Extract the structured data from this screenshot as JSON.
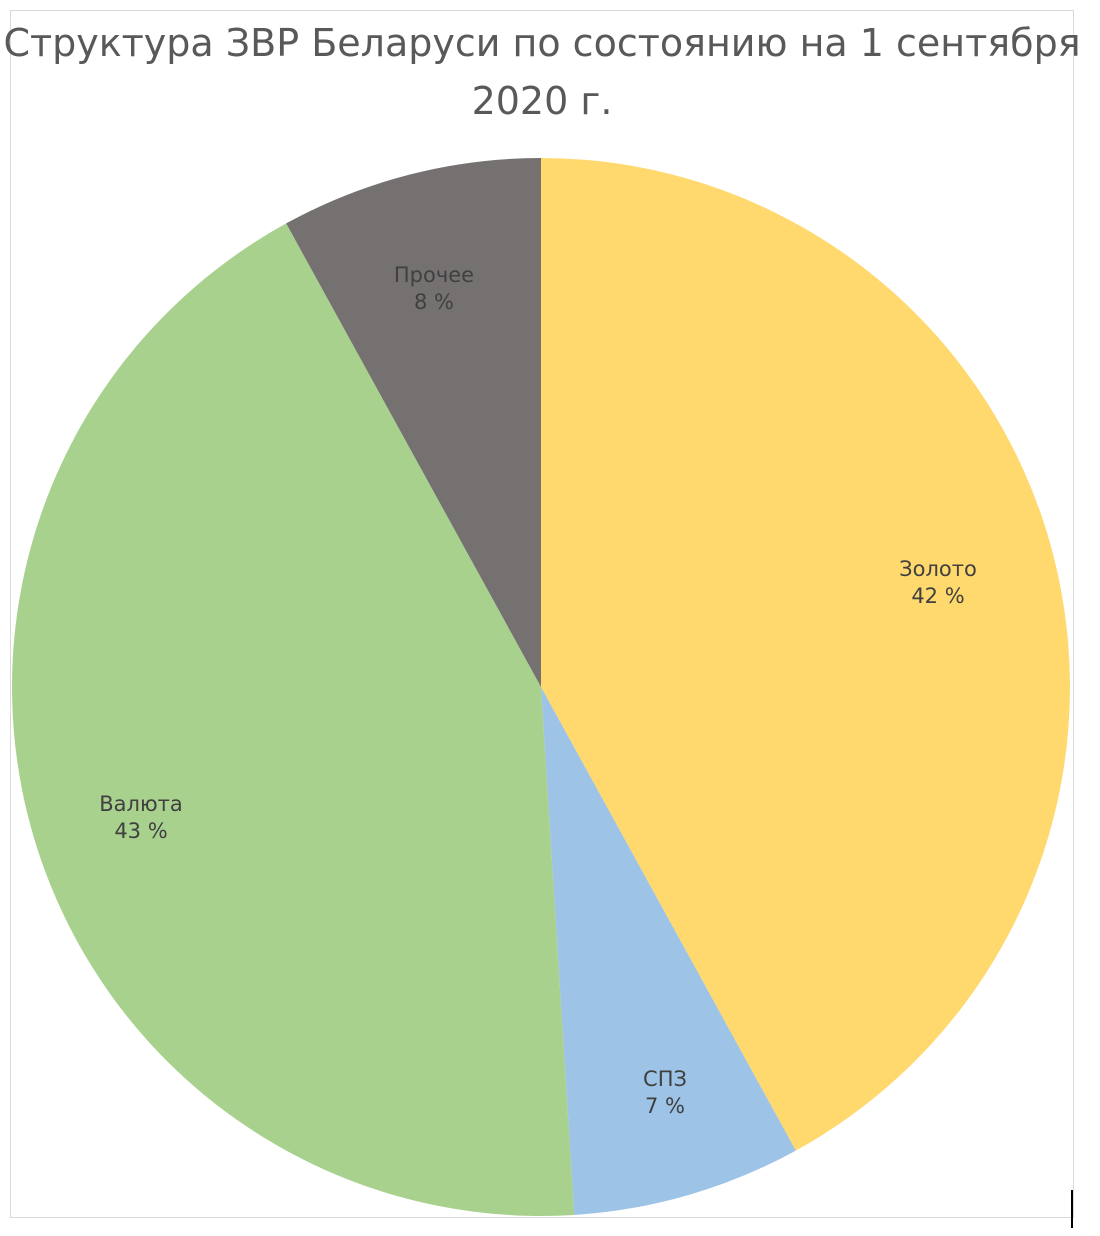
{
  "chart_data": {
    "type": "pie",
    "title_lines": [
      "Структура ЗВР Беларуси по состоянию на 1 сентября",
      "2020 г."
    ],
    "slices": [
      {
        "label": "Золото",
        "value": 42,
        "value_label": "42 %",
        "color": "#FFD86E"
      },
      {
        "label": "СПЗ",
        "value": 7,
        "value_label": "7 %",
        "color": "#9DC3E6"
      },
      {
        "label": "Валюта",
        "value": 43,
        "value_label": "43 %",
        "color": "#A9D18E"
      },
      {
        "label": "Прочее",
        "value": 8,
        "value_label": "8 %",
        "color": "#767171"
      }
    ],
    "start_angle_deg": 0,
    "direction": "clockwise",
    "legend": "none",
    "labels_inside": true
  }
}
